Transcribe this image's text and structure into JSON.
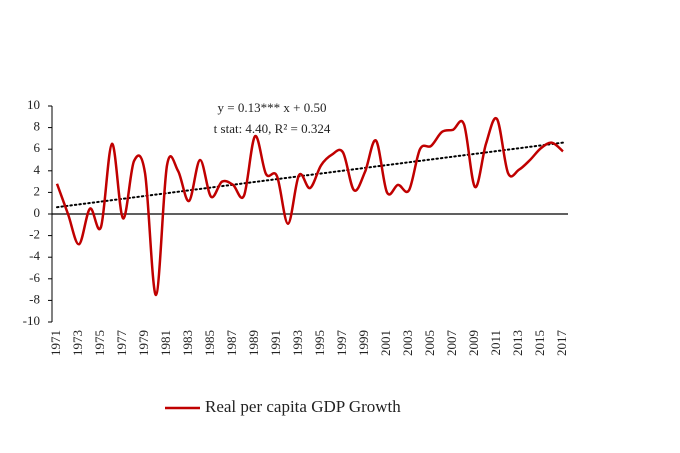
{
  "chart_data": {
    "type": "line",
    "categories": [
      "1971",
      null,
      "1973",
      null,
      "1975",
      null,
      "1977",
      null,
      "1979",
      null,
      "1981",
      null,
      "1983",
      null,
      "1985",
      null,
      "1987",
      null,
      "1989",
      null,
      "1991",
      null,
      "1993",
      null,
      "1995",
      null,
      "1997",
      null,
      "1999",
      null,
      "2001",
      null,
      "2003",
      null,
      "2005",
      null,
      "2007",
      null,
      "2009",
      null,
      "2011",
      null,
      "2013",
      null,
      "2015",
      null,
      "2017"
    ],
    "series": [
      {
        "name": "Real per capita GDP Growth",
        "color": "#c00000",
        "values": [
          2.8,
          0,
          -2.8,
          0.5,
          -1.2,
          6.5,
          -0.4,
          4.9,
          3.8,
          -7.5,
          4.5,
          4.0,
          1.2,
          5.0,
          1.6,
          3.0,
          2.7,
          1.7,
          7.2,
          3.7,
          3.5,
          -0.9,
          3.6,
          2.4,
          4.5,
          5.5,
          5.7,
          2.2,
          3.9,
          6.8,
          2.0,
          2.7,
          2.2,
          6.0,
          6.3,
          7.6,
          7.8,
          8.3,
          2.5,
          6.5,
          8.8,
          3.8,
          4.1,
          5.0,
          6.1,
          6.6,
          5.8
        ]
      }
    ],
    "trendline": {
      "slope": 0.13,
      "intercept": 0.5
    },
    "annotations": [
      "y = 0.13*** x  + 0.50",
      "t stat: 4.40, R² = 0.324"
    ],
    "ylim": [
      -10,
      10
    ],
    "yticks": [
      -10,
      -8,
      -6,
      -4,
      -2,
      0,
      2,
      4,
      6,
      8,
      10
    ],
    "legend": "bottom"
  }
}
